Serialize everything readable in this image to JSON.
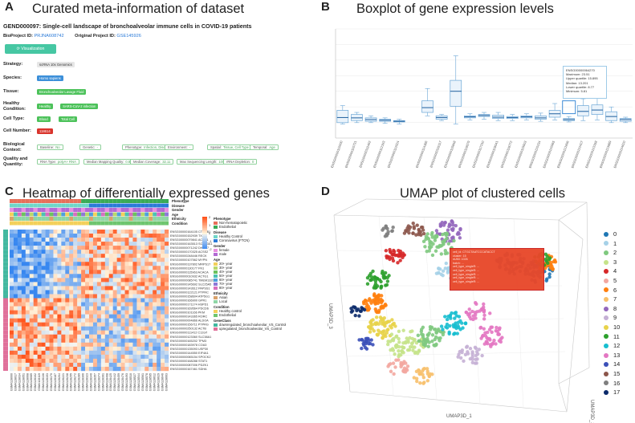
{
  "panel_a": {
    "label": "A",
    "title": "Curated meta-information of dataset",
    "dataset_heading": "GEND000097: Single-cell landscape of bronchoalveolar immune cells in COVID-19 patients",
    "bioproject_label": "BioProject ID:",
    "bioproject_value": "PRJNA608742",
    "orig_project_label": "Original Project ID:",
    "orig_project_value": "GSE145926",
    "vis_button": "⟳ Visualization",
    "rows": [
      {
        "label": "Strategy:",
        "chips": [
          {
            "t": "scRNA 10x Genomics",
            "c": "grey"
          }
        ]
      },
      {
        "label": "Species:",
        "chips": [
          {
            "t": "Homo sapiens",
            "c": "blue"
          }
        ]
      },
      {
        "label": "Tissue:",
        "chips": [
          {
            "t": "Bronchoalveolar Lavage Fluid",
            "c": "green"
          }
        ]
      },
      {
        "label": "Healthy Condition:",
        "chips": [
          {
            "t": "Healthy",
            "c": "green"
          },
          {
            "t": "SARS-CoV-2 infection",
            "c": "green"
          }
        ]
      },
      {
        "label": "Cell Type:",
        "chips": [
          {
            "t": "Blood",
            "c": "green"
          },
          {
            "t": "Total Cell",
            "c": "green"
          }
        ]
      },
      {
        "label": "Cell Number:",
        "chips": [
          {
            "t": "118614",
            "c": "red"
          }
        ]
      },
      {
        "label": "Biological Context:",
        "chips": [
          {
            "t": "Baseline:",
            "v": "No",
            "c": "outline"
          },
          {
            "t": "Genetic:",
            "v": "-",
            "c": "outline"
          },
          {
            "t": "Phenotype:",
            "v": "Infection, Disease, Gender",
            "c": "outline"
          },
          {
            "t": "Environment:",
            "v": "-",
            "c": "outline"
          },
          {
            "t": "Spatial:",
            "v": "Tissue, Cell Type",
            "c": "outline"
          },
          {
            "t": "Temporal:",
            "v": "Age",
            "c": "outline"
          }
        ]
      },
      {
        "label": "Quality and Quantity:",
        "chips": [
          {
            "t": "RNA Type:",
            "v": "polyA+ RNA",
            "c": "outline"
          },
          {
            "t": "Median Mapping Quality:",
            "v": "0.89",
            "c": "outline"
          },
          {
            "t": "Median Coverage:",
            "v": "32.11",
            "c": "outline"
          },
          {
            "t": "Max Sequencing Length:",
            "v": "100",
            "c": "outline"
          },
          {
            "t": "rRNA Depletion:",
            "v": "0",
            "c": "outline"
          }
        ]
      }
    ]
  },
  "panel_b": {
    "label": "B",
    "title": "Boxplot of gene expression levels",
    "tooltip": {
      "gene": "ENSG00000064270",
      "lines": [
        "Maximum: 23.51",
        "Upper quartile: 15.895",
        "Median: 13.201",
        "Lower quartile: 8.77",
        "Minimum: 5.81"
      ]
    }
  },
  "panel_c": {
    "label": "C",
    "title": "Heatmap of differentially expressed genes",
    "annotation_tracks": [
      "Phenotype",
      "Disease",
      "Gender",
      "Age",
      "Ethnicity",
      "Condition"
    ],
    "gene_labels": [
      "ENSG00000164105 CTNNB1",
      "ENSG00000152939 TXNIP",
      "ENSG00000079841 ACTG1",
      "ENSG00000163513 SCGB3A1",
      "ENSG00000071242 DHCR7",
      "ENSG00000170325 ACSS2",
      "ENSG00000248446 RECK",
      "ENSG00000107562 MYPN",
      "ENSG00000137802 MRPS17",
      "ENSG00000130177 FN1",
      "ENSG00000115963 ACACA",
      "ENSG00000010932 ACTG1",
      "ENSG00000085741 TMEM132D",
      "ENSG00000145692 SLC25A5",
      "ENSG00000143612 PAPSS1",
      "ENSG00000122121 PTPRC",
      "ENSG00000158604 ATP5G1",
      "ENSG00000166900 GPR1",
      "ENSG00000171174 HSPD1",
      "ENSG00000169564 PDCD6",
      "ENSG00000101166 PKM",
      "ENSG00000143365 RORC",
      "ENSG00000004866 ALDOA",
      "ENSG00000156711 PTPRG",
      "ENSG00000250132 ACTB",
      "ENSG00000111412 C12orf",
      "ENSG00000123360 SLC38A1",
      "ENSG00000165202 TPM3",
      "ENSG00000183978 COA3",
      "ENSG00000135093 USP30",
      "ENSG00000144550 EIF4A1",
      "ENSG00000065154 SPOCK2",
      "ENSG00000168288 STAT1",
      "ENSG00000087006 PDZK1",
      "ENSG00000167461 SDHA"
    ],
    "legend": [
      {
        "group": "Phenotype",
        "items": [
          {
            "t": "Non-hematopoietic",
            "c": "#e76f5a"
          },
          {
            "t": "Endothelial",
            "c": "#3aaa55"
          }
        ]
      },
      {
        "group": "Disease",
        "items": [
          {
            "t": "Healthy Control",
            "c": "#6fd6c8"
          },
          {
            "t": "Coronavirus (FTCN)",
            "c": "#2a7ad8"
          }
        ]
      },
      {
        "group": "Gender",
        "items": [
          {
            "t": "female",
            "c": "#e98ee0"
          },
          {
            "t": "male",
            "c": "#b36ad4"
          }
        ]
      },
      {
        "group": "Age",
        "items": [
          {
            "t": "20+ year",
            "c": "#f3d05a"
          },
          {
            "t": "30+ year",
            "c": "#b9d86a"
          },
          {
            "t": "40+ year",
            "c": "#6cc25e"
          },
          {
            "t": "50+ year",
            "c": "#4cc2b2"
          },
          {
            "t": "60+ year",
            "c": "#4ea0dd"
          },
          {
            "t": "70+ year",
            "c": "#8d79d6"
          },
          {
            "t": "80+ year",
            "c": "#d76fc0"
          }
        ]
      },
      {
        "group": "Ethnicity",
        "items": [
          {
            "t": "Asian",
            "c": "#d9a26b"
          },
          {
            "t": "Local",
            "c": "#8fd6a5"
          }
        ]
      },
      {
        "group": "Condition",
        "items": [
          {
            "t": "Healthy control",
            "c": "#f3d05a"
          },
          {
            "t": "Endothelial",
            "c": "#6ec56e"
          }
        ]
      },
      {
        "group": "GeneClass",
        "items": [
          {
            "t": "downregulated_bronchoalveolar_VS_Control",
            "c": "#42b8a0"
          },
          {
            "t": "upregulated_bronchoalveolar_VS_Control",
            "c": "#e0709a"
          }
        ]
      }
    ],
    "scale_ticks": [
      "2",
      "1",
      "0",
      "-1",
      "-2"
    ]
  },
  "panel_d": {
    "label": "D",
    "title": "UMAP plot of clustered cells",
    "xlabel": "UMAP3D_1",
    "ylabel": "UMAP3D_3",
    "zlabel": "UMAP3D_2",
    "clusters": [
      {
        "id": "0",
        "c": "#1f77b4"
      },
      {
        "id": "1",
        "c": "#a6d1e8"
      },
      {
        "id": "2",
        "c": "#7fc97f"
      },
      {
        "id": "3",
        "c": "#c5e38a"
      },
      {
        "id": "4",
        "c": "#d62728"
      },
      {
        "id": "5",
        "c": "#f3a7a0"
      },
      {
        "id": "6",
        "c": "#ff7f0e"
      },
      {
        "id": "7",
        "c": "#f7c06b"
      },
      {
        "id": "8",
        "c": "#9467bd"
      },
      {
        "id": "9",
        "c": "#c5b0d5"
      },
      {
        "id": "10",
        "c": "#e8d34a"
      },
      {
        "id": "11",
        "c": "#2ca02c"
      },
      {
        "id": "12",
        "c": "#17becf"
      },
      {
        "id": "13",
        "c": "#e377c2"
      },
      {
        "id": "14",
        "c": "#3b50b8"
      },
      {
        "id": "15",
        "c": "#8c564b"
      },
      {
        "id": "16",
        "c": "#7f7f7f"
      },
      {
        "id": "17",
        "c": "#0b2a6a"
      }
    ],
    "tooltip_lines": [
      "cell_id: CTGCTAATCCCATACCT",
      "cluster: 15",
      "nUMI: 1026",
      "batch: ...",
      "cell_type_singleR: ...",
      "cell_type_singleR: ...",
      "cell_type_singleR: ...",
      "cell_type_singleR: ...",
      "cell_type_singleR: ..."
    ]
  }
}
